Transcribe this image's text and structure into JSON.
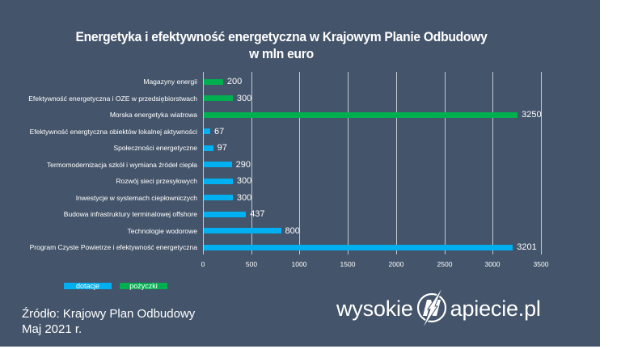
{
  "title": {
    "line1": "Energetyka i efektywność energetyczna w Krajowym Planie Odbudowy",
    "line2": "w mln euro"
  },
  "colors": {
    "background": "#44546A",
    "dotacje": "#00B0F0",
    "pozyczki": "#00B050",
    "gridline": "#C3C9D1",
    "text": "#FFFFFF"
  },
  "chart_data": {
    "type": "bar",
    "orientation": "horizontal",
    "title": "Energetyka i efektywność energetyczna w Krajowym Planie Odbudowy w mln euro",
    "xlabel": "",
    "ylabel": "",
    "xlim": [
      0,
      3500
    ],
    "x_ticks": [
      0,
      500,
      1000,
      1500,
      2000,
      2500,
      3000,
      3500
    ],
    "grid": true,
    "legend_position": "bottom-left",
    "categories": [
      "Magazyny energii",
      "Efektywność energetyczna i OZE w przedsiębiorstwach",
      "Morska energetyka wiatrowa",
      "Efektywność energtyczna obiektów lokalnej aktywności",
      "Społeczności energetyczne",
      "Termomodernizacja szkół i wymiana źródeł ciepła",
      "Rozwój sieci przesyłowych",
      "Inwestycje w systemach ciepłowniczych",
      "Budowa infrastruktury terminalowej offshore",
      "Technologie wodorowe",
      "Program Czyste Powietrze i efektywność energetyczna"
    ],
    "values": [
      200,
      300,
      3250,
      67,
      97,
      290,
      300,
      300,
      437,
      800,
      3201
    ],
    "series_type": [
      "pożyczki",
      "pożyczki",
      "pożyczki",
      "dotacje",
      "dotacje",
      "dotacje",
      "dotacje",
      "dotacje",
      "dotacje",
      "dotacje",
      "dotacje"
    ],
    "series": [
      {
        "name": "dotacje",
        "color": "#00B0F0",
        "values": [
          null,
          null,
          null,
          67,
          97,
          290,
          300,
          300,
          437,
          800,
          3201
        ]
      },
      {
        "name": "pożyczki",
        "color": "#00B050",
        "values": [
          200,
          300,
          3250,
          null,
          null,
          null,
          null,
          null,
          null,
          null,
          null
        ]
      }
    ]
  },
  "axis": {
    "ticks": [
      "0",
      "500",
      "1000",
      "1500",
      "2000",
      "2500",
      "3000",
      "3500"
    ]
  },
  "rows": [
    {
      "label": "Magazyny energii",
      "value": 200,
      "value_label": "200",
      "type": "pozyczki"
    },
    {
      "label": "Efektywność energetyczna i OZE w przedsiębiorstwach",
      "value": 300,
      "value_label": "300",
      "type": "pozyczki"
    },
    {
      "label": "Morska energetyka wiatrowa",
      "value": 3250,
      "value_label": "3250",
      "type": "pozyczki"
    },
    {
      "label": "Efektywność energtyczna obiektów lokalnej aktywności",
      "value": 67,
      "value_label": "67",
      "type": "dotacje"
    },
    {
      "label": "Społeczności energetyczne",
      "value": 97,
      "value_label": "97",
      "type": "dotacje"
    },
    {
      "label": "Termomodernizacja szkół i wymiana źródeł ciepła",
      "value": 290,
      "value_label": "290",
      "type": "dotacje"
    },
    {
      "label": "Rozwój sieci przesyłowych",
      "value": 300,
      "value_label": "300",
      "type": "dotacje"
    },
    {
      "label": "Inwestycje w systemach ciepłowniczych",
      "value": 300,
      "value_label": "300",
      "type": "dotacje"
    },
    {
      "label": "Budowa infrastruktury terminalowej offshore",
      "value": 437,
      "value_label": "437",
      "type": "dotacje"
    },
    {
      "label": "Technologie wodorowe",
      "value": 800,
      "value_label": "800",
      "type": "dotacje"
    },
    {
      "label": "Program Czyste Powietrze i efektywność energetyczna",
      "value": 3201,
      "value_label": "3201",
      "type": "dotacje"
    }
  ],
  "legend": {
    "dotacje": "dotacje",
    "pozyczki": "pożyczki"
  },
  "source": {
    "line1": "Źródło: Krajowy Plan Odbudowy",
    "line2": "Maj 2021 r."
  },
  "logo": {
    "left": "wysokie",
    "right": "apiecie.pl",
    "emblem": "n-lightning-circle-icon"
  }
}
